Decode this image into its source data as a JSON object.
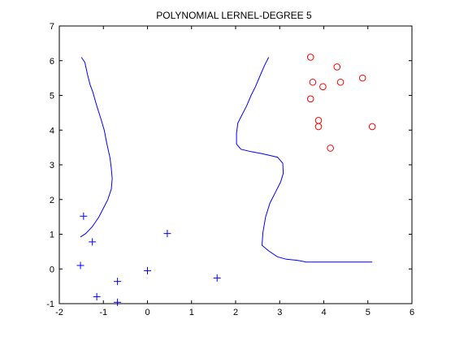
{
  "chart_data": {
    "type": "scatter",
    "title": "POLYNOMIAL LERNEL-DEGREE 5",
    "xlabel": "",
    "ylabel": "",
    "xlim": [
      -2,
      6
    ],
    "ylim": [
      -1,
      7
    ],
    "xticks": [
      -2,
      -1,
      0,
      1,
      2,
      3,
      4,
      5,
      6
    ],
    "yticks": [
      -1,
      0,
      1,
      2,
      3,
      4,
      5,
      6,
      7
    ],
    "grid": false,
    "legend": "none",
    "series": [
      {
        "marker": "plus",
        "color": "#0000ff",
        "points": [
          [
            -1.45,
            1.52
          ],
          [
            -1.25,
            0.78
          ],
          [
            -1.52,
            0.1
          ],
          [
            -1.15,
            -0.8
          ],
          [
            -0.68,
            -0.36
          ],
          [
            -0.68,
            -0.96
          ],
          [
            0.0,
            -0.05
          ],
          [
            0.45,
            1.02
          ],
          [
            1.58,
            -0.26
          ]
        ]
      },
      {
        "marker": "circle",
        "color": "#ff0000",
        "points": [
          [
            3.7,
            6.1
          ],
          [
            4.3,
            5.82
          ],
          [
            4.88,
            5.5
          ],
          [
            3.75,
            5.38
          ],
          [
            3.98,
            5.25
          ],
          [
            4.38,
            5.38
          ],
          [
            3.7,
            4.9
          ],
          [
            3.88,
            4.28
          ],
          [
            3.88,
            4.1
          ],
          [
            5.1,
            4.1
          ],
          [
            4.15,
            3.48
          ]
        ]
      }
    ],
    "boundaries": [
      {
        "style": "line",
        "color": "#0000ff",
        "points": [
          [
            -1.5,
            6.1
          ],
          [
            -1.42,
            5.95
          ],
          [
            -1.36,
            5.6
          ],
          [
            -1.3,
            5.3
          ],
          [
            -1.24,
            5.1
          ],
          [
            -1.15,
            4.7
          ],
          [
            -1.05,
            4.3
          ],
          [
            -0.98,
            4.0
          ],
          [
            -0.92,
            3.6
          ],
          [
            -0.85,
            3.2
          ],
          [
            -0.82,
            2.9
          ],
          [
            -0.8,
            2.6
          ],
          [
            -0.82,
            2.3
          ],
          [
            -0.9,
            2.0
          ],
          [
            -1.0,
            1.75
          ],
          [
            -1.1,
            1.5
          ],
          [
            -1.25,
            1.22
          ],
          [
            -1.4,
            1.02
          ],
          [
            -1.52,
            0.92
          ]
        ]
      },
      {
        "style": "line",
        "color": "#0000ff",
        "points": [
          [
            2.75,
            6.1
          ],
          [
            2.65,
            5.85
          ],
          [
            2.55,
            5.55
          ],
          [
            2.45,
            5.25
          ],
          [
            2.35,
            5.0
          ],
          [
            2.25,
            4.7
          ],
          [
            2.15,
            4.45
          ],
          [
            2.05,
            4.2
          ],
          [
            2.02,
            3.9
          ],
          [
            2.02,
            3.6
          ],
          [
            2.12,
            3.45
          ],
          [
            2.35,
            3.38
          ],
          [
            2.6,
            3.32
          ],
          [
            2.95,
            3.22
          ],
          [
            3.07,
            3.05
          ],
          [
            3.08,
            2.75
          ],
          [
            3.02,
            2.5
          ],
          [
            2.9,
            2.2
          ],
          [
            2.78,
            1.9
          ],
          [
            2.68,
            1.5
          ],
          [
            2.62,
            1.05
          ],
          [
            2.6,
            0.68
          ],
          [
            2.75,
            0.52
          ],
          [
            2.95,
            0.35
          ],
          [
            3.15,
            0.28
          ],
          [
            3.4,
            0.25
          ],
          [
            3.6,
            0.2
          ],
          [
            4.2,
            0.2
          ],
          [
            5.1,
            0.2
          ]
        ]
      }
    ]
  }
}
